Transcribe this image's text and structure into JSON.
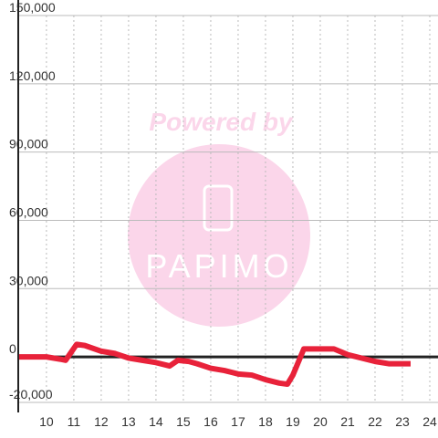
{
  "chart_data": {
    "type": "line",
    "watermark": [
      "Powered by",
      "PAPIMO"
    ],
    "x": [
      9,
      10,
      10.5,
      10.7,
      10.9,
      11.1,
      11.4,
      12,
      12.5,
      13,
      13.5,
      14,
      14.5,
      14.8,
      15.2,
      15.5,
      16,
      16.5,
      17,
      17.5,
      18,
      18.5,
      18.8,
      19,
      19.4,
      20,
      20.5,
      21,
      21.5,
      22,
      22.5,
      23.3
    ],
    "series": [
      {
        "color": "#e8223a",
        "values": [
          0,
          0,
          -1000,
          -1500,
          2000,
          5500,
          5000,
          2500,
          1500,
          -500,
          -1500,
          -2500,
          -4000,
          -1500,
          -2000,
          -3000,
          -5000,
          -6000,
          -7500,
          -8000,
          -10000,
          -11500,
          -12000,
          -8000,
          3500,
          3500,
          3500,
          1000,
          -500,
          -2000,
          -3000,
          -3000
        ]
      }
    ],
    "xlim": [
      8.97,
      24.3
    ],
    "xticks": [
      10,
      11,
      12,
      13,
      14,
      15,
      16,
      17,
      18,
      19,
      20,
      21,
      22,
      23,
      24
    ],
    "ylim": [
      -20000,
      150000
    ],
    "yticks": [
      {
        "value": -20000,
        "label": "-20,000"
      },
      0,
      {
        "value": 30000,
        "label": "30,000"
      },
      {
        "value": 60000,
        "label": "60,000"
      },
      {
        "value": 90000,
        "label": "90,000"
      },
      {
        "value": 120000,
        "label": "120,000"
      },
      {
        "value": 150000,
        "label": "150,000"
      }
    ],
    "grid": true
  }
}
